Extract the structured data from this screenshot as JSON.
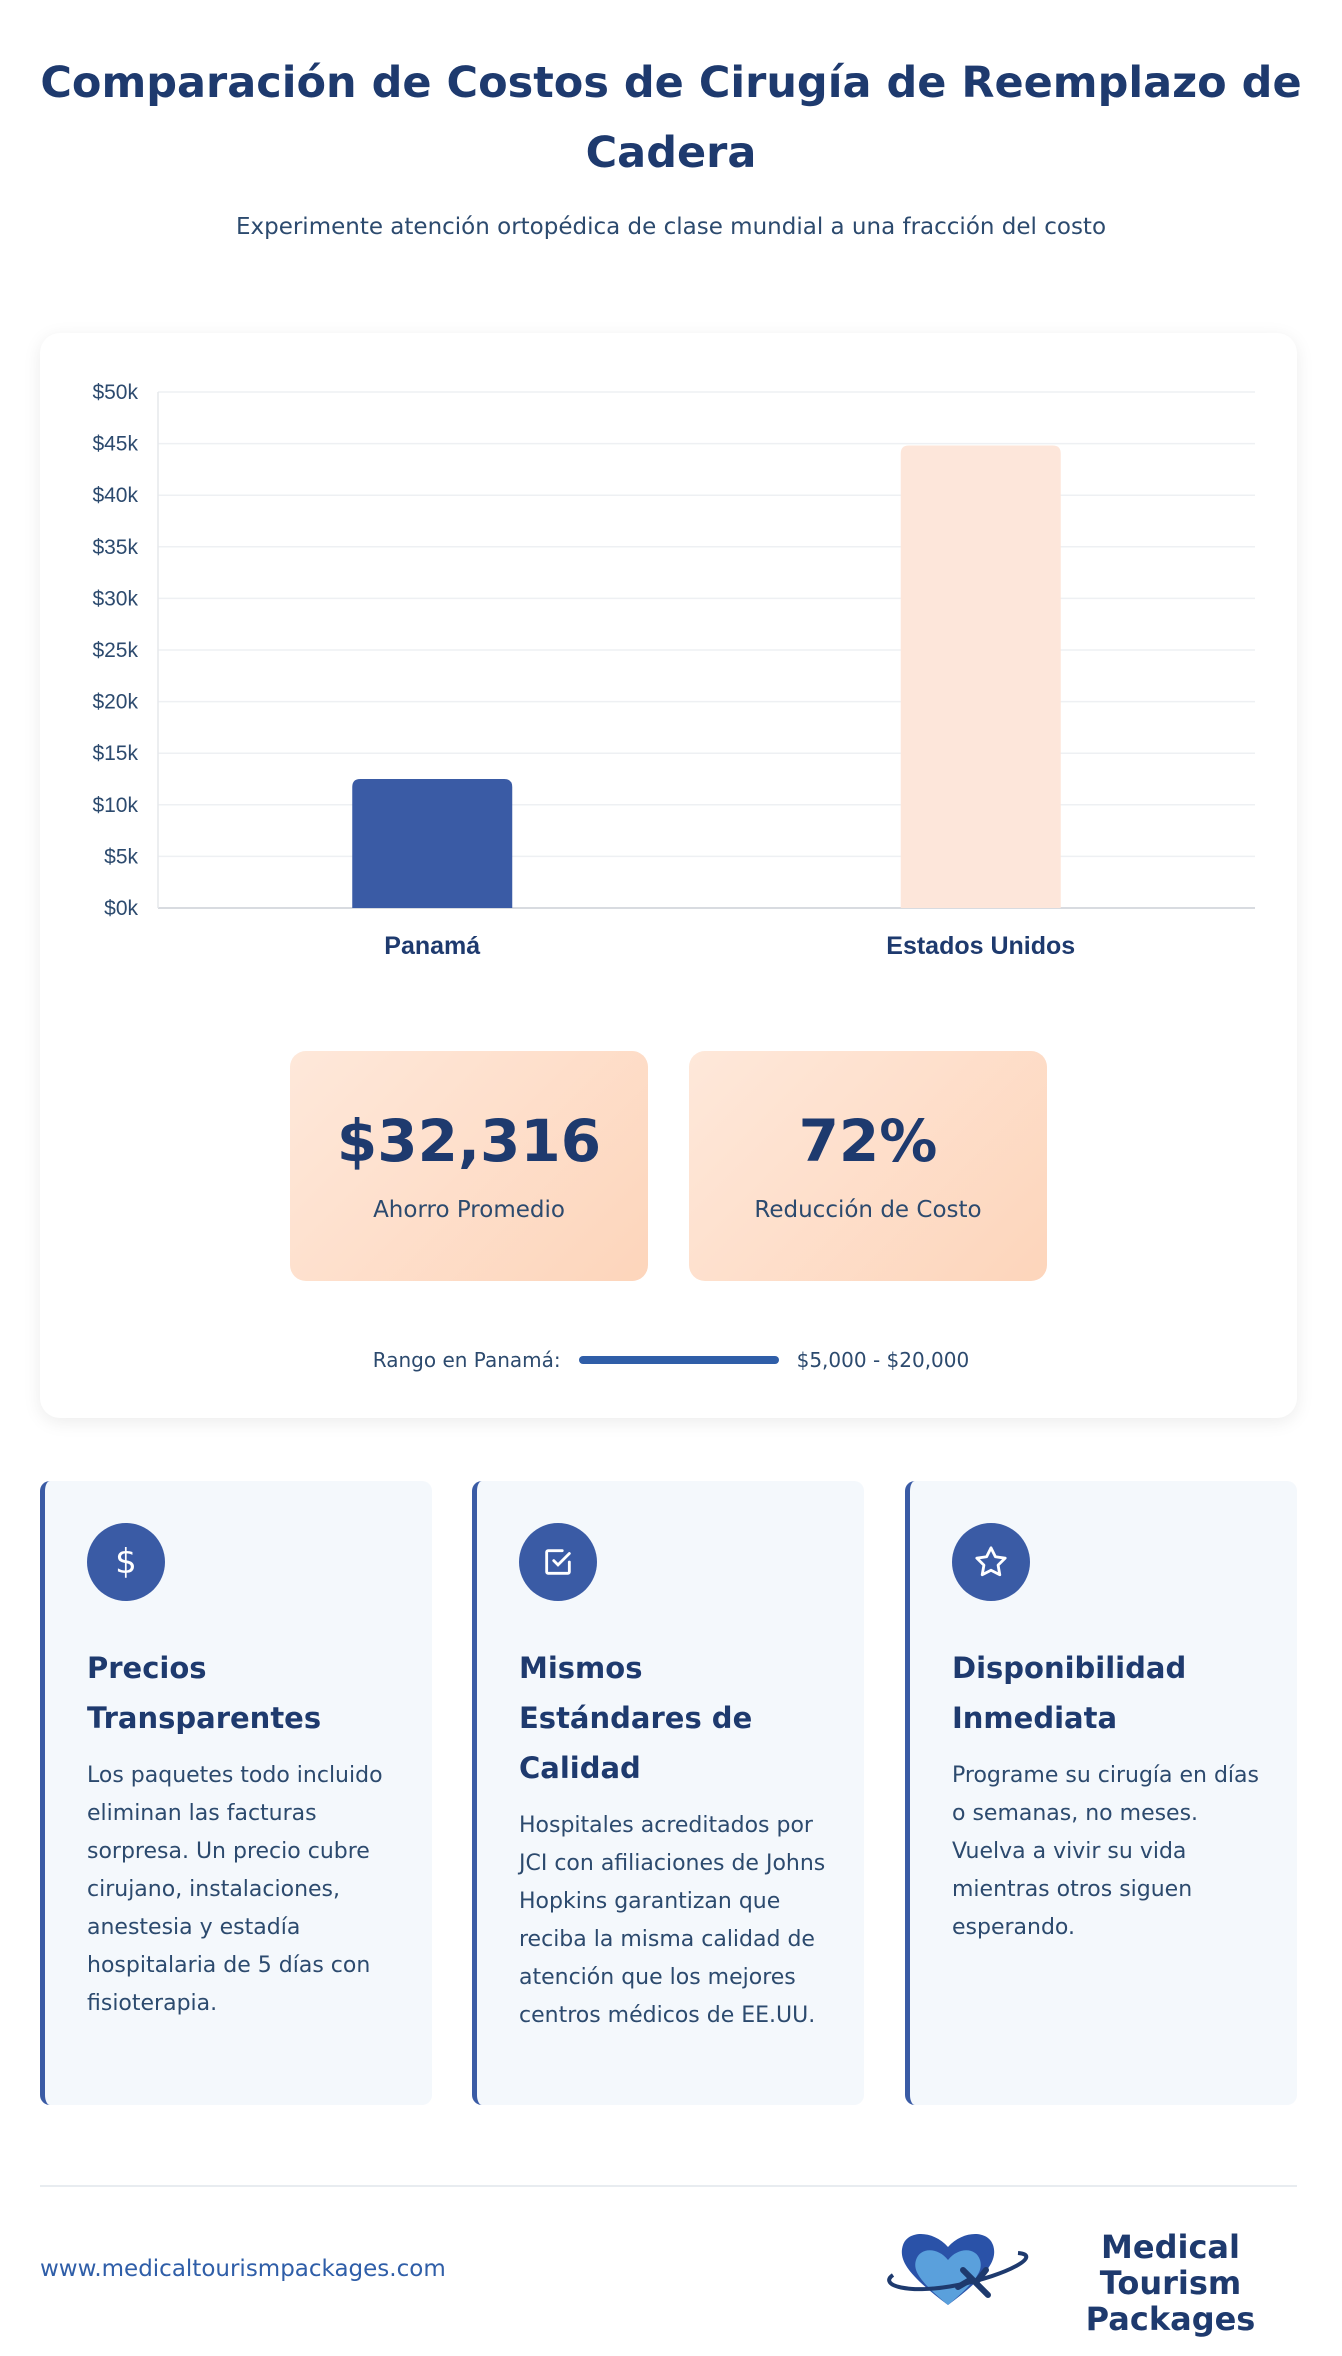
{
  "header": {
    "title": "Comparación de Costos de Cirugía de Reemplazo de Cadera",
    "subtitle": "Experimente atención ortopédica de clase mundial a una fracción del costo"
  },
  "chart_data": {
    "type": "bar",
    "categories": [
      "Panamá",
      "Estados Unidos"
    ],
    "values": [
      12500,
      44816
    ],
    "colors": [
      "#3a5ba5",
      "#fde6da"
    ],
    "ylim": [
      0,
      50000
    ],
    "yticks": [
      "$0k",
      "$5k",
      "$10k",
      "$15k",
      "$20k",
      "$25k",
      "$30k",
      "$35k",
      "$40k",
      "$45k",
      "$50k"
    ],
    "grid": true,
    "title": "",
    "xlabel": "",
    "ylabel": ""
  },
  "stats": [
    {
      "value": "$32,316",
      "label": "Ahorro Promedio"
    },
    {
      "value": "72%",
      "label": "Reducción de Costo"
    }
  ],
  "range": {
    "label": "Rango en Panamá:",
    "value": "$5,000 - $20,000"
  },
  "features": [
    {
      "icon": "dollar-icon",
      "title": "Precios Transparentes",
      "text": "Los paquetes todo incluido eliminan las facturas sorpresa. Un precio cubre cirujano, instalaciones, anestesia y estadía hospitalaria de 5 días con fisioterapia."
    },
    {
      "icon": "checkbox-icon",
      "title": "Mismos Estándares de Calidad",
      "text": "Hospitales acreditados por JCI con afiliaciones de Johns Hopkins garantizan que reciba la misma calidad de atención que los mejores centros médicos de EE.UU."
    },
    {
      "icon": "star-icon",
      "title": "Disponibilidad Inmediata",
      "text": "Programe su cirugía en días o semanas, no meses. Vuelva a vivir su vida mientras otros siguen esperando."
    }
  ],
  "footer": {
    "url": "www.medicaltourismpackages.com",
    "logo_text_1": "Medical Tourism",
    "logo_text_2": "Packages"
  }
}
